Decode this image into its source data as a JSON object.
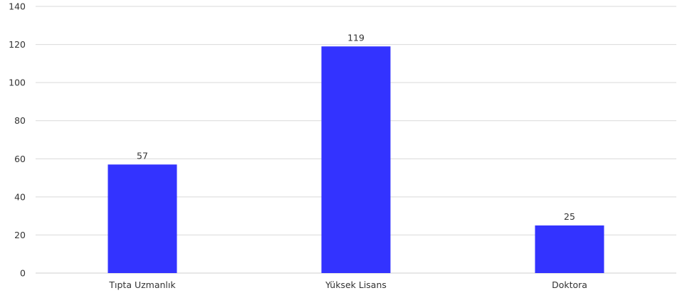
{
  "chart_data": {
    "type": "bar",
    "title": "",
    "xlabel": "",
    "ylabel": "",
    "categories": [
      "Tıpta Uzmanlık",
      "Yüksek Lisans",
      "Doktora"
    ],
    "values": [
      57,
      119,
      25
    ],
    "data_labels": [
      "57",
      "119",
      "25"
    ],
    "ylim": [
      0,
      140
    ],
    "yticks": [
      0,
      20,
      40,
      60,
      80,
      100,
      120,
      140
    ],
    "ytick_labels": [
      "0",
      "20",
      "40",
      "60",
      "80",
      "100",
      "120",
      "140"
    ],
    "grid": true,
    "legend": "none",
    "bar_color": "#3333ff"
  }
}
